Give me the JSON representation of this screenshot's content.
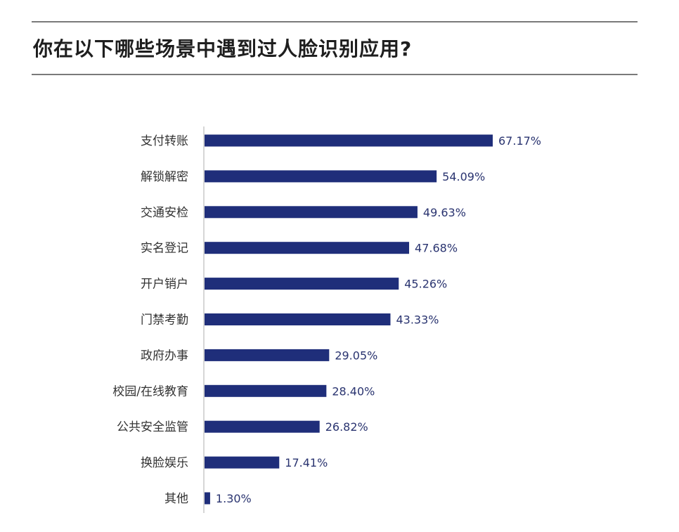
{
  "header": {
    "title": "你在以下哪些场景中遇到过人脸识别应用?"
  },
  "chart_data": {
    "type": "bar",
    "orientation": "horizontal",
    "title": "你在以下哪些场景中遇到过人脸识别应用?",
    "categories": [
      "支付转账",
      "解锁解密",
      "交通安检",
      "实名登记",
      "开户销户",
      "门禁考勤",
      "政府办事",
      "校园/在线教育",
      "公共安全监管",
      "换脸娱乐",
      "其他"
    ],
    "values": [
      67.17,
      54.09,
      49.63,
      47.68,
      45.26,
      43.33,
      29.05,
      28.4,
      26.82,
      17.41,
      1.3
    ],
    "value_labels": [
      "67.17%",
      "54.09%",
      "49.63%",
      "47.68%",
      "45.26%",
      "43.33%",
      "29.05%",
      "28.40%",
      "26.82%",
      "17.41%",
      "1.30%"
    ],
    "unit": "%",
    "xlim": [
      0,
      100
    ],
    "grid": false,
    "legend": "none",
    "bar_color": "#1f2e7a",
    "axis_color": "#c8c8c8",
    "label_color": "#333333",
    "value_color": "#2a3470"
  }
}
